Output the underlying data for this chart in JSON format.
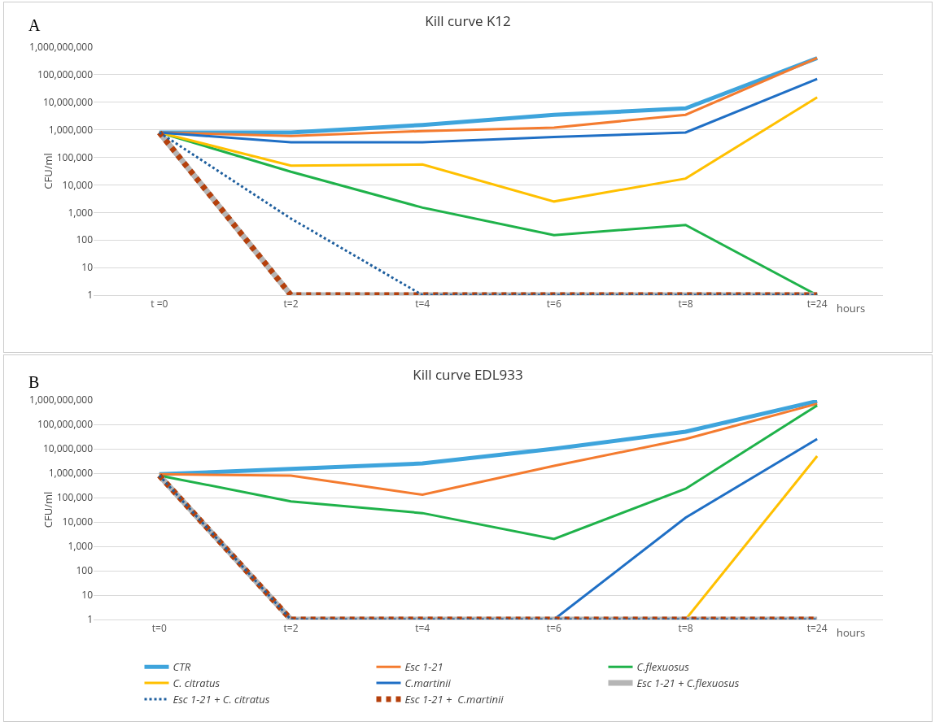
{
  "chart_data": [
    {
      "type": "line",
      "title": "Kill curve K12",
      "ylabel": "CFU/ml",
      "annotations": [
        "A",
        "hours"
      ],
      "categories": [
        "t =0",
        "t=2",
        "t=4",
        "t=6",
        "t=8",
        "t=24"
      ],
      "log": "y",
      "grid": "y",
      "legend": false,
      "marker": "none",
      "ylim": [
        1,
        1000000000
      ],
      "yticks": [
        {
          "value": 1,
          "label": "1"
        },
        {
          "value": 10,
          "label": "10"
        },
        {
          "value": 100,
          "label": "100"
        },
        {
          "value": 1000,
          "label": "1,000"
        },
        {
          "value": 10000,
          "label": "10,000"
        },
        {
          "value": 100000,
          "label": "100,000"
        },
        {
          "value": 1000000,
          "label": "1,000,000"
        },
        {
          "value": 10000000,
          "label": "10,000,000"
        },
        {
          "value": 100000000,
          "label": "100,000,000"
        },
        {
          "value": 1000000000,
          "label": "1,000,000,000"
        }
      ],
      "series": [
        {
          "color": "#3ea4dc",
          "line_style": "solid",
          "values": [
            800000,
            800000,
            1500000,
            3500000,
            6000000,
            400000000
          ]
        },
        {
          "color": "#f47b2f",
          "line_style": "solid",
          "values": [
            800000,
            600000,
            900000,
            1200000,
            3500000,
            400000000
          ]
        },
        {
          "color": "#1fb24a",
          "line_style": "solid",
          "values": [
            800000,
            30000,
            1500,
            150,
            350,
            1
          ]
        },
        {
          "color": "#ffc000",
          "line_style": "solid",
          "values": [
            800000,
            50000,
            55000,
            2500,
            17000,
            15000000
          ]
        },
        {
          "color": "#1f6fc5",
          "line_style": "solid",
          "values": [
            800000,
            350000,
            350000,
            550000,
            800000,
            70000000
          ]
        },
        {
          "color": "#b5b5b5",
          "line_style": "solid",
          "values": [
            800000,
            1,
            1,
            1,
            1,
            1
          ]
        },
        {
          "color": "#1f5f9e",
          "line_style": "dotted",
          "values": [
            800000,
            600,
            1,
            1,
            1,
            1
          ]
        },
        {
          "color": "#b5400c",
          "line_style": "dotted",
          "values": [
            800000,
            1,
            1,
            1,
            1,
            1
          ]
        }
      ]
    },
    {
      "type": "line",
      "title": "Kill curve EDL933",
      "ylabel": "CFU/ml",
      "annotations": [
        "B",
        "hours"
      ],
      "categories": [
        "t=0",
        "t=2",
        "t=4",
        "t=6",
        "t=8",
        "t=24"
      ],
      "log": "y",
      "grid": "y",
      "legend": "bottom",
      "marker": "none",
      "ylim": [
        1,
        1000000000
      ],
      "yticks": [
        {
          "value": 1,
          "label": "1"
        },
        {
          "value": 10,
          "label": "10"
        },
        {
          "value": 100,
          "label": "100"
        },
        {
          "value": 1000,
          "label": "1,000"
        },
        {
          "value": 10000,
          "label": "10,000"
        },
        {
          "value": 100000,
          "label": "100,000"
        },
        {
          "value": 1000000,
          "label": "1,000,000"
        },
        {
          "value": 10000000,
          "label": "10,000,000"
        },
        {
          "value": 100000000,
          "label": "100,000,000"
        },
        {
          "value": 1000000000,
          "label": "1,000,000,000"
        }
      ],
      "series": [
        {
          "name": "CTR",
          "color": "#3ea4dc",
          "line_style": "solid",
          "values": [
            900000,
            1500000,
            2500000,
            10000000,
            50000000,
            900000000
          ]
        },
        {
          "name": "Esc 1-21",
          "color": "#f47b2f",
          "line_style": "solid",
          "values": [
            900000,
            800000,
            130000,
            2000000,
            25000000,
            700000000
          ]
        },
        {
          "name": "C.flexuosus",
          "color": "#1fb24a",
          "line_style": "solid",
          "values": [
            800000,
            70000,
            23000,
            2000,
            230000,
            600000000
          ]
        },
        {
          "name": "C. citratus",
          "color": "#ffc000",
          "line_style": "solid",
          "values": [
            null,
            null,
            null,
            null,
            1,
            5000000
          ]
        },
        {
          "name": "C.martinii",
          "color": "#1f6fc5",
          "line_style": "solid",
          "values": [
            null,
            null,
            null,
            1,
            15000,
            25000000
          ]
        },
        {
          "name": "Esc 1-21 + C.flexuosus",
          "color": "#b5b5b5",
          "line_style": "solid",
          "values": [
            800000,
            1,
            1,
            1,
            1,
            1
          ]
        },
        {
          "name": "Esc 1-21 + C. citratus",
          "color": "#1f5f9e",
          "line_style": "dotted",
          "values": [
            800000,
            1,
            1,
            1,
            1,
            1
          ]
        },
        {
          "name": "Esc 1-21 +  C.martinii",
          "color": "#b5400c",
          "line_style": "dotted",
          "values": [
            800000,
            1,
            1,
            1,
            1,
            1
          ]
        }
      ]
    }
  ]
}
